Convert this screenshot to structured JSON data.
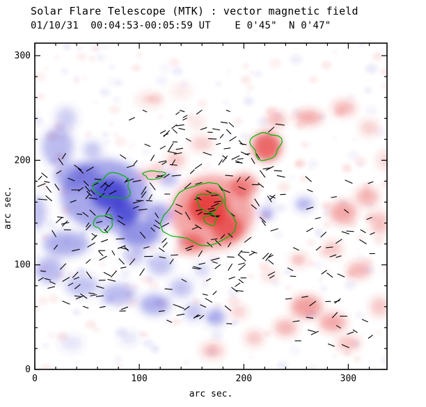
{
  "header": {
    "title": "Solar Flare Telescope (MTK) : vector magnetic field",
    "subtitle": "01/10/31  00:04:53-00:05:59 UT    E 0'45\"  N 0'47\""
  },
  "chart_data": {
    "type": "heatmap",
    "title": "Solar Flare Telescope (MTK) : vector magnetic field",
    "subtitle": "01/10/31  00:04:53-00:05:59 UT    E 0'45\"  N 0'47\"",
    "xlabel": "arc sec.",
    "ylabel": "arc sec.",
    "xlim": [
      0,
      337
    ],
    "ylim": [
      0,
      312
    ],
    "x_ticks": [
      0,
      100,
      200,
      300
    ],
    "y_ticks": [
      0,
      100,
      200,
      300
    ],
    "minor_tick_step": 20,
    "grid": false,
    "legend": "none",
    "colors": {
      "positive_polarity": "#e32b2b",
      "negative_polarity": "#3a3ad0",
      "contour": "#00b400",
      "vector": "#000000",
      "axis": "#000000",
      "background": "#ffffff"
    },
    "blobs_format": "[x, y, rx, ry, opacity] in arc sec (y from bottom)",
    "blobs": {
      "negative": [
        [
          67,
          167,
          42,
          34,
          0.45
        ],
        [
          72,
          168,
          18,
          15,
          0.8
        ],
        [
          86,
          150,
          13,
          11,
          0.75
        ],
        [
          40,
          185,
          22,
          13,
          0.4
        ],
        [
          22,
          213,
          15,
          18,
          0.35
        ],
        [
          30,
          240,
          10,
          11,
          0.25
        ],
        [
          100,
          130,
          20,
          13,
          0.55
        ],
        [
          118,
          148,
          13,
          11,
          0.45
        ],
        [
          30,
          120,
          22,
          12,
          0.4
        ],
        [
          14,
          95,
          13,
          13,
          0.35
        ],
        [
          45,
          80,
          16,
          10,
          0.3
        ],
        [
          80,
          72,
          17,
          10,
          0.35
        ],
        [
          115,
          62,
          15,
          10,
          0.4
        ],
        [
          140,
          78,
          11,
          9,
          0.3
        ],
        [
          152,
          55,
          9,
          8,
          0.3
        ],
        [
          173,
          50,
          9,
          8,
          0.45
        ],
        [
          120,
          100,
          12,
          10,
          0.3
        ],
        [
          95,
          108,
          10,
          8,
          0.28
        ],
        [
          222,
          150,
          7,
          6,
          0.4
        ],
        [
          258,
          158,
          9,
          7,
          0.35
        ],
        [
          2,
          150,
          9,
          16,
          0.3
        ],
        [
          55,
          210,
          9,
          8,
          0.3
        ],
        [
          128,
          182,
          9,
          7,
          0.35
        ],
        [
          160,
          95,
          7,
          6,
          0.25
        ],
        [
          35,
          25,
          11,
          7,
          0.15
        ],
        [
          90,
          30,
          9,
          6,
          0.15
        ]
      ],
      "positive": [
        [
          170,
          150,
          40,
          36,
          0.4
        ],
        [
          166,
          155,
          19,
          17,
          0.8
        ],
        [
          184,
          136,
          15,
          13,
          0.65
        ],
        [
          150,
          120,
          13,
          10,
          0.5
        ],
        [
          200,
          176,
          13,
          11,
          0.55
        ],
        [
          222,
          213,
          14,
          14,
          0.7
        ],
        [
          231,
          239,
          9,
          7,
          0.35
        ],
        [
          262,
          241,
          13,
          7,
          0.4
        ],
        [
          296,
          250,
          11,
          7,
          0.35
        ],
        [
          320,
          231,
          9,
          7,
          0.25
        ],
        [
          135,
          200,
          9,
          7,
          0.3
        ],
        [
          160,
          216,
          11,
          7,
          0.25
        ],
        [
          112,
          187,
          12,
          5,
          0.35
        ],
        [
          110,
          258,
          13,
          7,
          0.15
        ],
        [
          140,
          266,
          9,
          6,
          0.13
        ],
        [
          295,
          150,
          13,
          11,
          0.4
        ],
        [
          318,
          165,
          11,
          9,
          0.35
        ],
        [
          330,
          140,
          9,
          11,
          0.3
        ],
        [
          285,
          115,
          9,
          8,
          0.28
        ],
        [
          310,
          95,
          11,
          8,
          0.35
        ],
        [
          260,
          60,
          15,
          11,
          0.45
        ],
        [
          285,
          45,
          13,
          9,
          0.4
        ],
        [
          240,
          40,
          11,
          8,
          0.35
        ],
        [
          300,
          25,
          11,
          7,
          0.3
        ],
        [
          210,
          30,
          9,
          7,
          0.28
        ],
        [
          170,
          18,
          11,
          7,
          0.3
        ],
        [
          195,
          55,
          8,
          6,
          0.25
        ],
        [
          330,
          60,
          9,
          9,
          0.28
        ],
        [
          335,
          200,
          7,
          9,
          0.2
        ],
        [
          253,
          105,
          8,
          6,
          0.28
        ],
        [
          225,
          90,
          7,
          5,
          0.22
        ],
        [
          155,
          236,
          7,
          5,
          0.18
        ]
      ]
    },
    "contours_format": "[cx, cy, rx, ry] in arc sec, closed green flux contours",
    "contours": [
      [
        75,
        175,
        17,
        12
      ],
      [
        66,
        140,
        9,
        8
      ],
      [
        158,
        147,
        33,
        29
      ],
      [
        167,
        160,
        12,
        9
      ],
      [
        168,
        143,
        6,
        5
      ],
      [
        221,
        214,
        14,
        13
      ],
      [
        114,
        186,
        10,
        4
      ]
    ],
    "vector_regions_format": "[x0,x1,y0,y1,count,len_min,len_max,angle_min_deg,angle_max_deg]",
    "vector_regions": [
      [
        5,
        120,
        85,
        205,
        100,
        5,
        9,
        -60,
        60
      ],
      [
        120,
        235,
        95,
        235,
        120,
        5,
        9,
        -60,
        60
      ],
      [
        0,
        90,
        55,
        90,
        22,
        5,
        8,
        -40,
        40
      ],
      [
        235,
        325,
        85,
        185,
        30,
        5,
        8,
        -50,
        50
      ],
      [
        120,
        235,
        40,
        92,
        26,
        5,
        8,
        -45,
        45
      ],
      [
        235,
        325,
        15,
        70,
        20,
        5,
        8,
        -50,
        50
      ],
      [
        90,
        208,
        205,
        248,
        16,
        4,
        7,
        -40,
        40
      ]
    ],
    "noise": {
      "seed": 12,
      "count": 300,
      "rmin": 2,
      "rmax": 9,
      "omin": 0.04,
      "omax": 0.11
    },
    "vector_seed": 99
  }
}
